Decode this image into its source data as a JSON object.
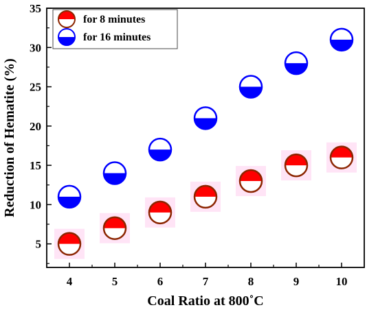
{
  "chart_data": {
    "type": "scatter",
    "xlabel": "Coal Ratio at 800˚C",
    "ylabel": "Reduction of Hematite (%)",
    "xlim": [
      3.5,
      10.5
    ],
    "ylim": [
      2,
      35
    ],
    "xticks": [
      "4",
      "5",
      "6",
      "7",
      "8",
      "9",
      "10"
    ],
    "yticks": [
      "5",
      "10",
      "15",
      "20",
      "25",
      "30",
      "35"
    ],
    "legend_position": "top-left",
    "grid": false,
    "series": [
      {
        "name": "for 8 minutes",
        "color": "#ff0000",
        "edge_color": "#8b2500",
        "marker": "half-filled-top",
        "x": [
          4,
          5,
          6,
          7,
          8,
          9,
          10
        ],
        "y": [
          5,
          7,
          9,
          11,
          13,
          15,
          16
        ]
      },
      {
        "name": "for 16 minutes",
        "color": "#0000ff",
        "edge_color": "#0000ff",
        "marker": "half-filled-bottom",
        "x": [
          4,
          5,
          6,
          7,
          8,
          9,
          10
        ],
        "y": [
          11,
          14,
          17,
          21,
          25,
          28,
          31
        ]
      }
    ]
  }
}
